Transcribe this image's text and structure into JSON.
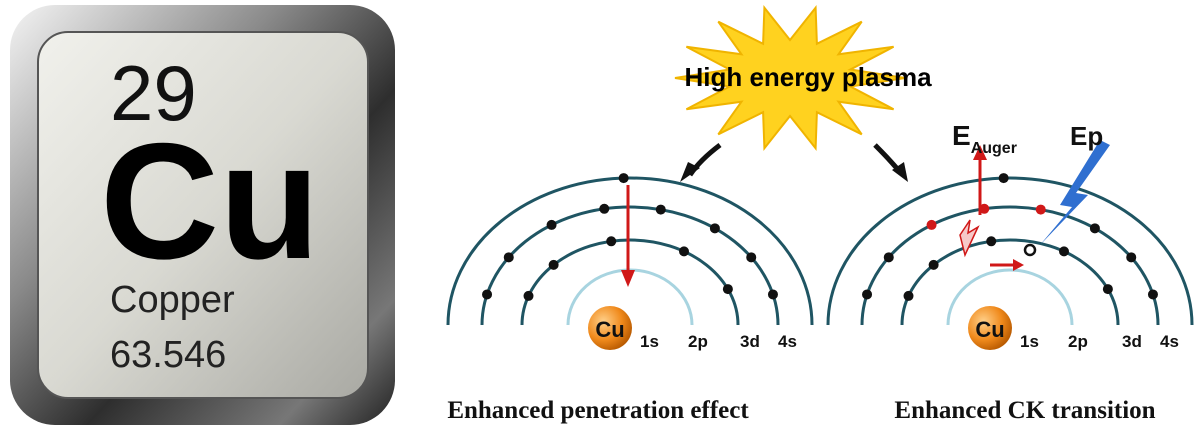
{
  "element": {
    "number": "29",
    "symbol": "Cu",
    "name": "Copper",
    "mass": "63.546"
  },
  "plasma": "High energy plasma",
  "diagrams": [
    {
      "nucleus": "Cu",
      "shells": [
        "1s",
        "2p",
        "3d",
        "4s"
      ],
      "caption": "Enhanced penetration effect"
    },
    {
      "nucleus": "Cu",
      "shells": [
        "1s",
        "2p",
        "3d",
        "4s"
      ],
      "auger": {
        "base": "E",
        "sub": "Auger"
      },
      "photon": "Ep",
      "caption": "Enhanced CK transition"
    }
  ]
}
